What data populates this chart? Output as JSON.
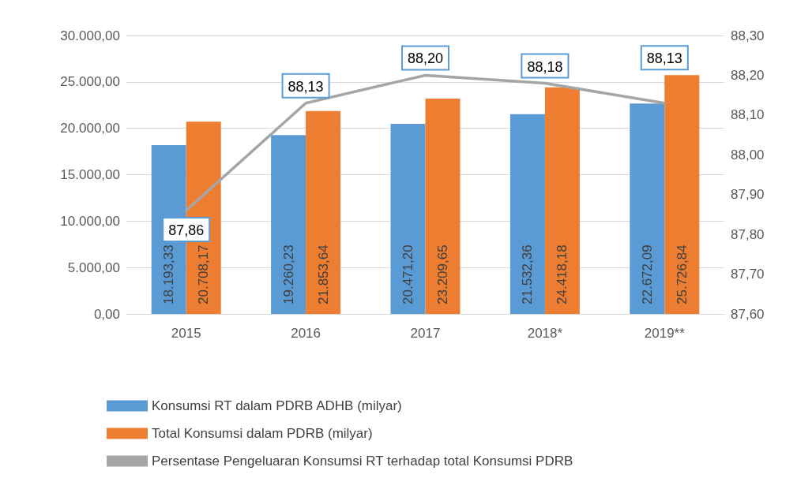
{
  "chart_data": {
    "type": "bar",
    "categories": [
      "2015",
      "2016",
      "2017",
      "2018*",
      "2019**"
    ],
    "series": [
      {
        "name": "Konsumsi RT dalam PDRB ADHB (milyar)",
        "color": "#5b9bd5",
        "values": [
          18193.33,
          19260.23,
          20471.2,
          21532.36,
          22672.09
        ],
        "value_labels": [
          "18.193,33",
          "19.260,23",
          "20.471,20",
          "21.532,36",
          "22.672,09"
        ]
      },
      {
        "name": "Total Konsumsi dalam PDRB (milyar)",
        "color": "#ed7d31",
        "values": [
          20708.17,
          21853.64,
          23209.65,
          24418.18,
          25726.84
        ],
        "value_labels": [
          "20.708,17",
          "21.853,64",
          "23.209,65",
          "24.418,18",
          "25.726,84"
        ]
      },
      {
        "name": "Persentase Pengeluaran Konsumsi RT terhadap total Konsumsi PDRB",
        "type": "line",
        "axis": "y2",
        "color": "#a5a5a5",
        "values": [
          87.86,
          88.13,
          88.2,
          88.18,
          88.13
        ],
        "value_labels": [
          "87,86",
          "88,13",
          "88,20",
          "88,18",
          "88,13"
        ]
      }
    ],
    "ylim": [
      0,
      30000
    ],
    "yticks": [
      {
        "value": 0,
        "label": "0,00"
      },
      {
        "value": 5000,
        "label": "5.000,00"
      },
      {
        "value": 10000,
        "label": "10.000,00"
      },
      {
        "value": 15000,
        "label": "15.000,00"
      },
      {
        "value": 20000,
        "label": "20.000,00"
      },
      {
        "value": 25000,
        "label": "25.000,00"
      },
      {
        "value": 30000,
        "label": "30.000,00"
      }
    ],
    "y2lim": [
      87.6,
      88.3
    ],
    "y2ticks": [
      {
        "value": 87.6,
        "label": "87,60"
      },
      {
        "value": 87.7,
        "label": "87,70"
      },
      {
        "value": 87.8,
        "label": "87,80"
      },
      {
        "value": 87.9,
        "label": "87,90"
      },
      {
        "value": 88.0,
        "label": "88,00"
      },
      {
        "value": 88.1,
        "label": "88,10"
      },
      {
        "value": 88.2,
        "label": "88,20"
      },
      {
        "value": 88.3,
        "label": "88,30"
      }
    ],
    "grid": "y",
    "legend": "bottom",
    "marker": "none",
    "line_style": "solid"
  }
}
